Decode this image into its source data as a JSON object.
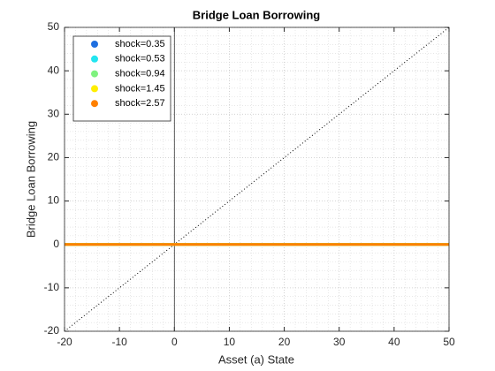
{
  "chart_data": {
    "type": "line",
    "title": "Bridge Loan Borrowing",
    "x_label": "Asset (a) State",
    "y_label": "Bridge Loan Borrowing",
    "x": [
      -20,
      50
    ],
    "series": [
      {
        "name": "shock=0.35",
        "color": "#1f6fe0",
        "values": [
          0,
          0
        ]
      },
      {
        "name": "shock=0.53",
        "color": "#22e5f0",
        "values": [
          0,
          0
        ]
      },
      {
        "name": "shock=0.94",
        "color": "#7ff27f",
        "values": [
          0,
          0
        ]
      },
      {
        "name": "shock=1.45",
        "color": "#ffee00",
        "values": [
          0,
          0
        ]
      },
      {
        "name": "shock=2.57",
        "color": "#ff8000",
        "values": [
          0,
          0
        ]
      }
    ],
    "diagonal": {
      "x": [
        -20,
        50
      ],
      "values": [
        -20,
        50
      ]
    },
    "vline": 0,
    "xlim": [
      -20,
      50
    ],
    "ylim": [
      -20,
      50
    ],
    "xticks": [
      -20,
      -10,
      0,
      10,
      20,
      30,
      40,
      50
    ],
    "yticks": [
      -20,
      -10,
      0,
      10,
      20,
      30,
      40,
      50
    ],
    "grid": true,
    "minor_grid": true,
    "legend": "northwest"
  }
}
